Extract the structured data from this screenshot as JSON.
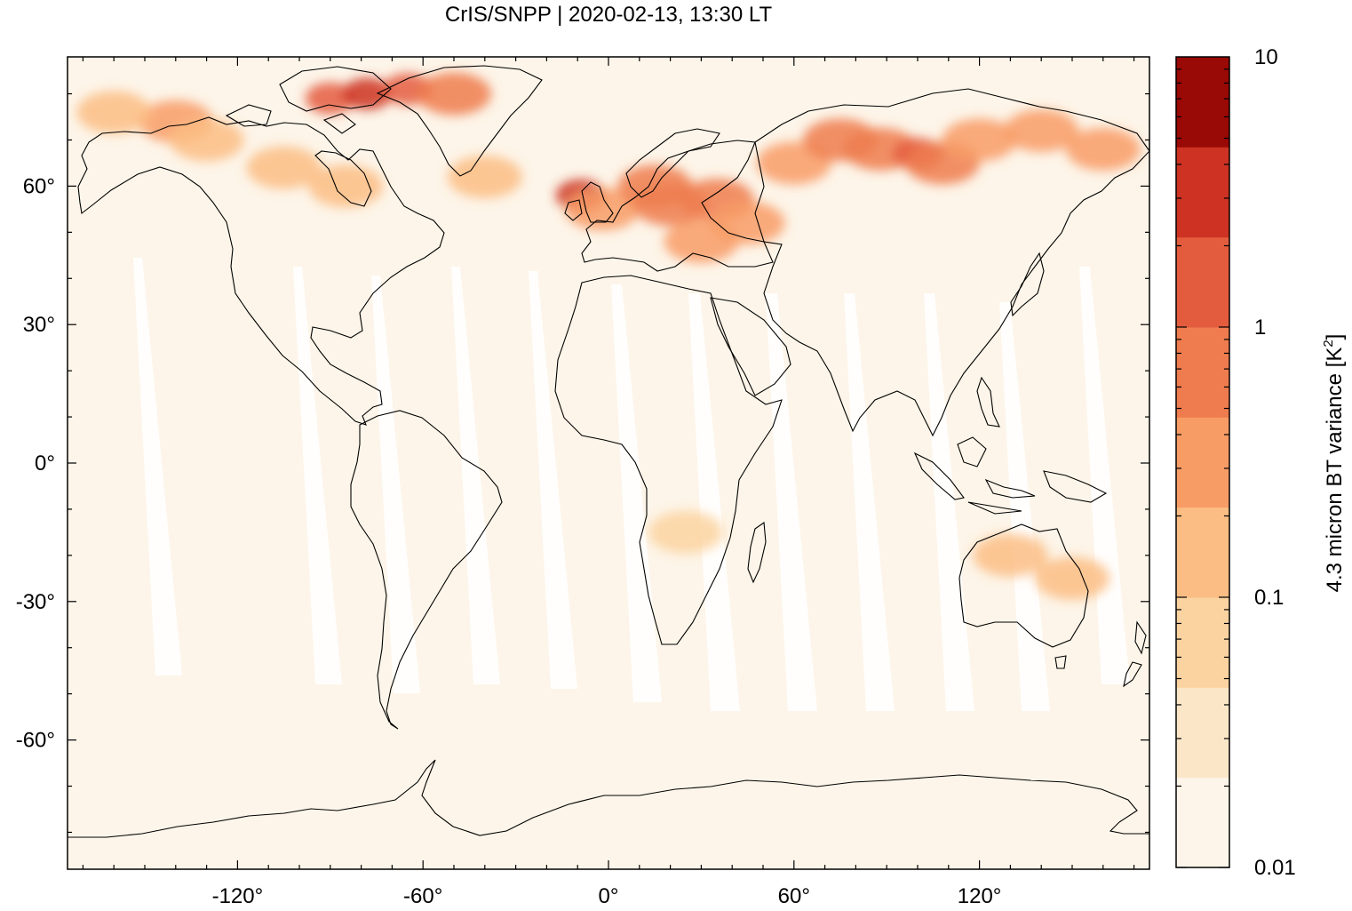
{
  "title": "CrIS/SNPP | 2020-02-13, 13:30 LT",
  "map": {
    "projection": "equirectangular",
    "lon_range": [
      -175,
      175
    ],
    "lat_range": [
      -88,
      88
    ],
    "background_color": "#fdf5e9",
    "gap_color": "#ffffff",
    "lon_ticks": [
      {
        "value": -120,
        "label": "-120°"
      },
      {
        "value": -60,
        "label": "-60°"
      },
      {
        "value": 0,
        "label": "0°"
      },
      {
        "value": 60,
        "label": "60°"
      },
      {
        "value": 120,
        "label": "120°"
      }
    ],
    "lat_ticks": [
      {
        "value": 60,
        "label": "60°"
      },
      {
        "value": 30,
        "label": "30°"
      },
      {
        "value": 0,
        "label": "0°"
      },
      {
        "value": -30,
        "label": "-30°"
      },
      {
        "value": -60,
        "label": "-60°"
      }
    ]
  },
  "colorbar": {
    "label": "4.3 micron BT variance [K",
    "label_superscript": "2",
    "label_suffix": "]",
    "scale": "log",
    "range": [
      0.01,
      10
    ],
    "tick_labels": [
      {
        "value": 10,
        "label": "10"
      },
      {
        "value": 1,
        "label": "1"
      },
      {
        "value": 0.1,
        "label": "0.1"
      },
      {
        "value": 0.01,
        "label": "0.01"
      }
    ],
    "colors": [
      "#fdf5e9",
      "#fbe7c8",
      "#fbd3a0",
      "#fbbd84",
      "#f89c66",
      "#ef7c4e",
      "#e45c3e",
      "#cd3222",
      "#990905"
    ]
  },
  "chart_data": {
    "type": "heatmap",
    "title": "CrIS/SNPP | 2020-02-13, 13:30 LT",
    "variable": "4.3 micron BT variance [K2]",
    "color_scale": "log",
    "range": [
      0.01,
      10
    ],
    "regions": [
      {
        "lon": -90,
        "lat": 79,
        "value": 1.5
      },
      {
        "lon": -78,
        "lat": 80,
        "value": 2.2
      },
      {
        "lon": -65,
        "lat": 81,
        "value": 1.2
      },
      {
        "lon": -50,
        "lat": 80,
        "value": 0.5
      },
      {
        "lon": -140,
        "lat": 74,
        "value": 0.25
      },
      {
        "lon": -160,
        "lat": 76,
        "value": 0.2
      },
      {
        "lon": -130,
        "lat": 70,
        "value": 0.12
      },
      {
        "lon": -105,
        "lat": 64,
        "value": 0.15
      },
      {
        "lon": -85,
        "lat": 60,
        "value": 0.15
      },
      {
        "lon": -40,
        "lat": 62,
        "value": 0.2
      },
      {
        "lon": -9,
        "lat": 58,
        "value": 2.5
      },
      {
        "lon": -2,
        "lat": 55,
        "value": 0.4
      },
      {
        "lon": 15,
        "lat": 60,
        "value": 0.8
      },
      {
        "lon": 20,
        "lat": 56,
        "value": 0.5
      },
      {
        "lon": 35,
        "lat": 57,
        "value": 0.7
      },
      {
        "lon": 30,
        "lat": 48,
        "value": 0.35
      },
      {
        "lon": 45,
        "lat": 52,
        "value": 0.3
      },
      {
        "lon": 60,
        "lat": 65,
        "value": 0.4
      },
      {
        "lon": 75,
        "lat": 70,
        "value": 0.6
      },
      {
        "lon": 88,
        "lat": 68,
        "value": 0.8
      },
      {
        "lon": 100,
        "lat": 67,
        "value": 1.3
      },
      {
        "lon": 108,
        "lat": 65,
        "value": 0.9
      },
      {
        "lon": 120,
        "lat": 70,
        "value": 0.4
      },
      {
        "lon": 140,
        "lat": 72,
        "value": 0.3
      },
      {
        "lon": 160,
        "lat": 68,
        "value": 0.25
      },
      {
        "lon": 130,
        "lat": -20,
        "value": 0.12
      },
      {
        "lon": 150,
        "lat": -25,
        "value": 0.1
      },
      {
        "lon": 25,
        "lat": -15,
        "value": 0.08
      }
    ]
  }
}
